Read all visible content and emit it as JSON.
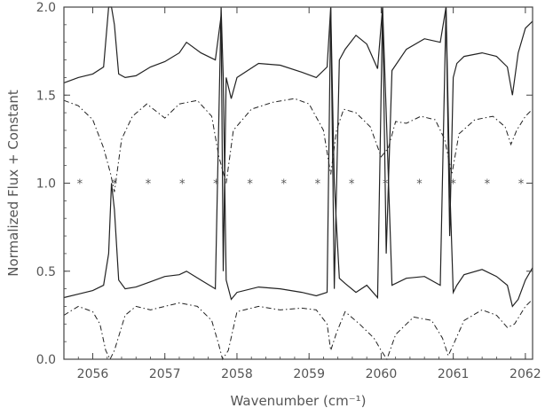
{
  "chart_data": {
    "type": "line",
    "title": "",
    "xlabel": "Wavenumber (cm⁻¹)",
    "ylabel": "Normalized Flux + Constant",
    "xlim": [
      2055.6,
      2062.1
    ],
    "ylim": [
      0.0,
      2.0
    ],
    "grid": false,
    "xticks": [
      2056,
      2057,
      2058,
      2059,
      2060,
      2061,
      2062
    ],
    "xtick_labels": [
      "2056",
      "2057",
      "2058",
      "2059",
      "2060",
      "2061",
      "2062"
    ],
    "yticks": [
      0.0,
      0.5,
      1.0,
      1.5,
      2.0
    ],
    "ytick_labels": [
      "0.0",
      "0.5",
      "1.0",
      "1.5",
      "2.0"
    ],
    "series": [
      {
        "style": "solid",
        "x": [
          2055.6,
          2055.8,
          2056.0,
          2056.15,
          2056.22,
          2056.26,
          2056.3,
          2056.36,
          2056.45,
          2056.6,
          2056.8,
          2057.0,
          2057.2,
          2057.3,
          2057.5,
          2057.7,
          2057.78,
          2057.81,
          2057.85,
          2057.92,
          2058.0,
          2058.3,
          2058.6,
          2058.9,
          2059.1,
          2059.25,
          2059.3,
          2059.35,
          2059.42,
          2059.5,
          2059.65,
          2059.8,
          2059.95,
          2060.02,
          2060.07,
          2060.15,
          2060.35,
          2060.6,
          2060.82,
          2060.9,
          2060.95,
          2061.0,
          2061.05,
          2061.15,
          2061.4,
          2061.6,
          2061.75,
          2061.82,
          2061.9,
          2062.0,
          2062.1
        ],
        "y": [
          1.57,
          1.6,
          1.62,
          1.66,
          2.0,
          2.0,
          1.9,
          1.62,
          1.6,
          1.61,
          1.66,
          1.69,
          1.74,
          1.8,
          1.74,
          1.7,
          1.95,
          0.5,
          1.6,
          1.48,
          1.6,
          1.68,
          1.67,
          1.63,
          1.6,
          1.66,
          2.0,
          0.4,
          1.7,
          1.76,
          1.84,
          1.79,
          1.65,
          2.0,
          0.6,
          1.64,
          1.76,
          1.82,
          1.8,
          2.0,
          0.7,
          1.6,
          1.68,
          1.72,
          1.74,
          1.72,
          1.66,
          1.5,
          1.74,
          1.88,
          1.92
        ]
      },
      {
        "style": "dash-dot",
        "x": [
          2055.6,
          2055.8,
          2056.0,
          2056.15,
          2056.25,
          2056.3,
          2056.4,
          2056.55,
          2056.75,
          2057.0,
          2057.2,
          2057.45,
          2057.65,
          2057.75,
          2057.85,
          2057.95,
          2058.2,
          2058.5,
          2058.8,
          2059.0,
          2059.2,
          2059.3,
          2059.38,
          2059.48,
          2059.65,
          2059.85,
          2060.0,
          2060.1,
          2060.2,
          2060.35,
          2060.55,
          2060.75,
          2060.88,
          2060.98,
          2061.08,
          2061.3,
          2061.55,
          2061.72,
          2061.8,
          2061.88,
          2062.0,
          2062.1
        ],
        "y": [
          1.47,
          1.44,
          1.36,
          1.2,
          1.05,
          0.95,
          1.25,
          1.38,
          1.45,
          1.37,
          1.45,
          1.47,
          1.38,
          1.15,
          1.0,
          1.3,
          1.42,
          1.46,
          1.48,
          1.45,
          1.3,
          1.05,
          1.3,
          1.42,
          1.4,
          1.32,
          1.15,
          1.2,
          1.35,
          1.34,
          1.38,
          1.36,
          1.25,
          1.05,
          1.28,
          1.36,
          1.38,
          1.32,
          1.22,
          1.3,
          1.38,
          1.42
        ]
      },
      {
        "style": "solid",
        "x": [
          2055.6,
          2055.8,
          2056.0,
          2056.15,
          2056.22,
          2056.26,
          2056.3,
          2056.36,
          2056.45,
          2056.6,
          2056.8,
          2057.0,
          2057.2,
          2057.3,
          2057.5,
          2057.7,
          2057.78,
          2057.81,
          2057.85,
          2057.92,
          2058.0,
          2058.3,
          2058.6,
          2058.9,
          2059.1,
          2059.25,
          2059.3,
          2059.35,
          2059.42,
          2059.5,
          2059.65,
          2059.8,
          2059.95,
          2060.02,
          2060.07,
          2060.15,
          2060.35,
          2060.6,
          2060.82,
          2060.9,
          2060.95,
          2061.0,
          2061.05,
          2061.15,
          2061.4,
          2061.6,
          2061.75,
          2061.82,
          2061.9,
          2062.0,
          2062.1
        ],
        "y": [
          0.35,
          0.37,
          0.39,
          0.42,
          0.6,
          1.0,
          0.85,
          0.45,
          0.4,
          0.41,
          0.44,
          0.47,
          0.48,
          0.5,
          0.45,
          0.4,
          2.0,
          1.6,
          0.45,
          0.34,
          0.38,
          0.41,
          0.4,
          0.38,
          0.36,
          0.38,
          2.0,
          1.0,
          0.46,
          0.43,
          0.38,
          0.42,
          0.35,
          2.0,
          1.4,
          0.42,
          0.46,
          0.47,
          0.42,
          2.0,
          1.0,
          0.38,
          0.42,
          0.48,
          0.51,
          0.47,
          0.42,
          0.3,
          0.34,
          0.45,
          0.52
        ]
      },
      {
        "style": "dash-dot",
        "x": [
          2055.6,
          2055.8,
          2056.0,
          2056.1,
          2056.18,
          2056.24,
          2056.3,
          2056.45,
          2056.6,
          2056.8,
          2057.0,
          2057.2,
          2057.45,
          2057.65,
          2057.75,
          2057.8,
          2057.88,
          2058.0,
          2058.3,
          2058.6,
          2058.9,
          2059.1,
          2059.25,
          2059.3,
          2059.38,
          2059.5,
          2059.7,
          2059.9,
          2060.0,
          2060.08,
          2060.2,
          2060.45,
          2060.7,
          2060.85,
          2060.93,
          2061.02,
          2061.15,
          2061.4,
          2061.6,
          2061.75,
          2061.85,
          2062.0,
          2062.1
        ],
        "y": [
          0.25,
          0.3,
          0.27,
          0.2,
          0.05,
          0.0,
          0.05,
          0.25,
          0.3,
          0.28,
          0.3,
          0.32,
          0.3,
          0.22,
          0.08,
          0.0,
          0.05,
          0.27,
          0.3,
          0.28,
          0.29,
          0.28,
          0.2,
          0.05,
          0.15,
          0.27,
          0.2,
          0.12,
          0.05,
          0.0,
          0.14,
          0.24,
          0.22,
          0.12,
          0.02,
          0.1,
          0.22,
          0.28,
          0.25,
          0.18,
          0.2,
          0.3,
          0.34
        ]
      }
    ],
    "markers": {
      "symbol": "*",
      "y": 1.0,
      "x": [
        2055.82,
        2056.3,
        2056.77,
        2057.24,
        2057.71,
        2058.18,
        2058.65,
        2059.12,
        2059.59,
        2060.06,
        2060.53,
        2061.0,
        2061.47,
        2061.94
      ]
    }
  }
}
